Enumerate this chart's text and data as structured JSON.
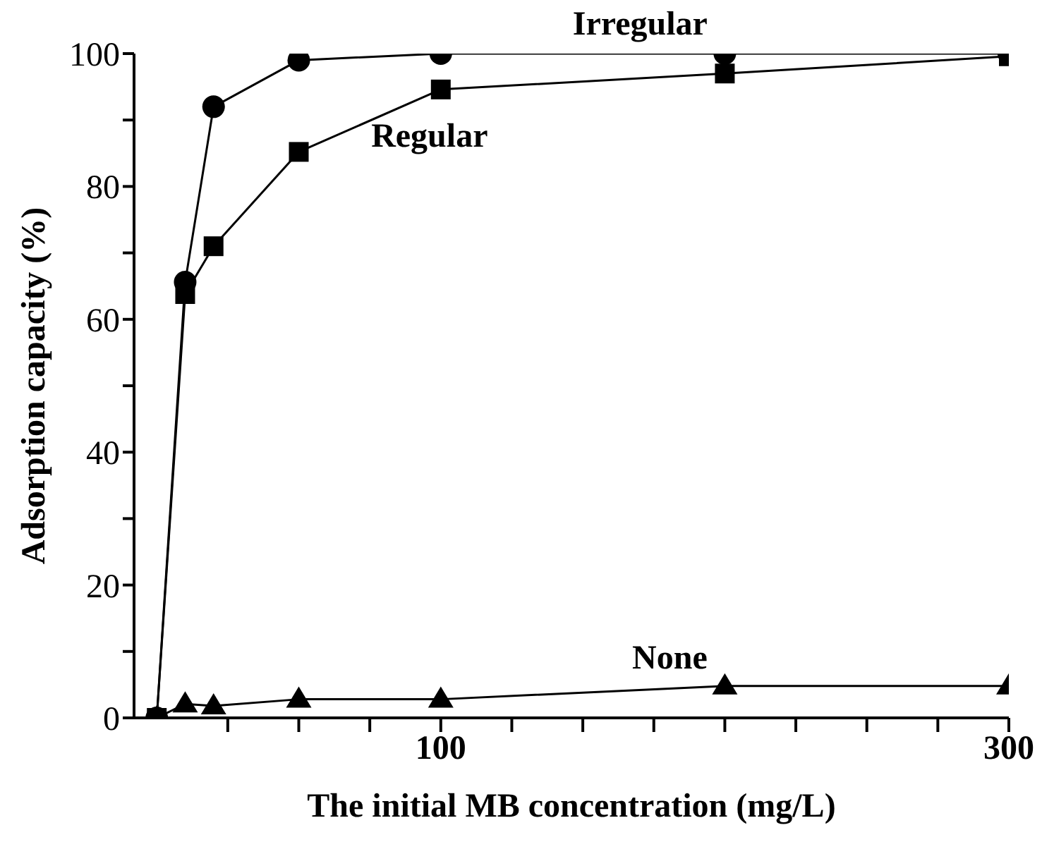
{
  "chart_data": {
    "type": "line",
    "xlabel": "The initial MB concentration (mg/L)",
    "ylabel": "Adsorption capacity (%)",
    "x": [
      0,
      10,
      20,
      50,
      100,
      200,
      300
    ],
    "series": [
      {
        "name": "Irregular",
        "color": "#000000",
        "marker": "circle",
        "values": [
          0,
          65.6,
          92,
          99,
          100,
          100,
          100
        ]
      },
      {
        "name": "Regular",
        "color": "#000000",
        "marker": "square",
        "values": [
          0,
          63.8,
          71,
          85.2,
          94.6,
          97,
          99.6
        ]
      },
      {
        "name": "None",
        "color": "#000000",
        "marker": "triangle",
        "values": [
          0,
          2.1,
          1.8,
          2.8,
          2.8,
          4.8,
          4.8
        ]
      }
    ],
    "xlim": [
      -8,
      300
    ],
    "xticks": [
      {
        "value": 25,
        "label": null
      },
      {
        "value": 50,
        "label": null
      },
      {
        "value": 75,
        "label": null
      },
      {
        "value": 100,
        "label": "100"
      },
      {
        "value": 125,
        "label": null
      },
      {
        "value": 150,
        "label": null
      },
      {
        "value": 175,
        "label": null
      },
      {
        "value": 200,
        "label": null
      },
      {
        "value": 225,
        "label": null
      },
      {
        "value": 250,
        "label": null
      },
      {
        "value": 275,
        "label": null
      },
      {
        "value": 300,
        "label": "300"
      }
    ],
    "ylim": [
      0,
      100
    ],
    "yticks": [
      0,
      {
        "value": 10,
        "label": null
      },
      20,
      {
        "value": 30,
        "label": null
      },
      40,
      {
        "value": 50,
        "label": null
      },
      60,
      {
        "value": 70,
        "label": null
      },
      80,
      {
        "value": 90,
        "label": null
      },
      100
    ],
    "grid": false,
    "legend": false,
    "line_style": "solid"
  }
}
